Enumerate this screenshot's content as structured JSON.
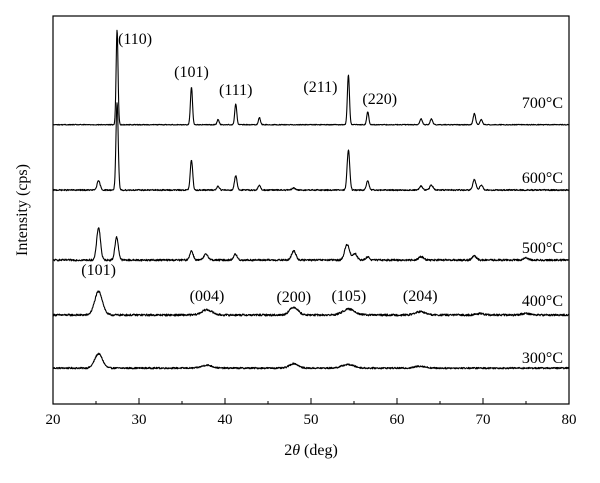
{
  "chart_data": {
    "type": "line",
    "title": "",
    "xlabel_prefix": "2",
    "xlabel_symbol": "θ",
    "xlabel_suffix": " (deg)",
    "ylabel": "Intensity (cps)",
    "xlim": [
      20,
      80
    ],
    "xticks": [
      20,
      30,
      40,
      50,
      60,
      70,
      80
    ],
    "y_ticks_shown": false,
    "grid": false,
    "legend": "none",
    "line_color": "#000000",
    "series": [
      {
        "name": "300°C",
        "baseline": 0.6,
        "noise": 0.12,
        "peaks": [
          {
            "x": 25.3,
            "h": 2.2,
            "w": 0.45
          },
          {
            "x": 37.9,
            "h": 0.45,
            "w": 0.6
          },
          {
            "x": 48.0,
            "h": 0.7,
            "w": 0.5
          },
          {
            "x": 54.3,
            "h": 0.55,
            "w": 0.7
          },
          {
            "x": 62.7,
            "h": 0.3,
            "w": 0.6
          }
        ]
      },
      {
        "name": "400°C",
        "baseline": 0.0,
        "noise": 0.15,
        "peaks": [
          {
            "x": 25.3,
            "h": 3.6,
            "w": 0.45
          },
          {
            "x": 37.9,
            "h": 0.8,
            "w": 0.6
          },
          {
            "x": 48.0,
            "h": 1.2,
            "w": 0.5
          },
          {
            "x": 54.4,
            "h": 0.9,
            "w": 0.7
          },
          {
            "x": 62.7,
            "h": 0.5,
            "w": 0.6
          },
          {
            "x": 69.6,
            "h": 0.2,
            "w": 0.5
          },
          {
            "x": 75.0,
            "h": 0.25,
            "w": 0.5
          }
        ]
      },
      {
        "name": "500°C",
        "baseline": 0.3,
        "noise": 0.14,
        "peaks": [
          {
            "x": 25.3,
            "h": 5.0,
            "w": 0.22
          },
          {
            "x": 27.4,
            "h": 3.5,
            "w": 0.2
          },
          {
            "x": 36.1,
            "h": 1.4,
            "w": 0.2
          },
          {
            "x": 37.8,
            "h": 0.9,
            "w": 0.25
          },
          {
            "x": 41.2,
            "h": 0.9,
            "w": 0.2
          },
          {
            "x": 48.0,
            "h": 1.4,
            "w": 0.25
          },
          {
            "x": 54.2,
            "h": 2.4,
            "w": 0.28
          },
          {
            "x": 55.1,
            "h": 1.0,
            "w": 0.25
          },
          {
            "x": 56.6,
            "h": 0.5,
            "w": 0.2
          },
          {
            "x": 62.8,
            "h": 0.5,
            "w": 0.3
          },
          {
            "x": 69.0,
            "h": 0.6,
            "w": 0.25
          },
          {
            "x": 75.0,
            "h": 0.3,
            "w": 0.3
          }
        ]
      },
      {
        "name": "600°C",
        "baseline": 0.3,
        "noise": 0.1,
        "peaks": [
          {
            "x": 25.3,
            "h": 1.4,
            "w": 0.18
          },
          {
            "x": 27.45,
            "h": 13.4,
            "w": 0.13
          },
          {
            "x": 36.1,
            "h": 4.6,
            "w": 0.14
          },
          {
            "x": 39.2,
            "h": 0.6,
            "w": 0.15
          },
          {
            "x": 41.25,
            "h": 2.2,
            "w": 0.15
          },
          {
            "x": 44.0,
            "h": 0.7,
            "w": 0.15
          },
          {
            "x": 48.0,
            "h": 0.3,
            "w": 0.2
          },
          {
            "x": 54.35,
            "h": 6.2,
            "w": 0.15
          },
          {
            "x": 56.6,
            "h": 1.4,
            "w": 0.15
          },
          {
            "x": 62.8,
            "h": 0.6,
            "w": 0.18
          },
          {
            "x": 64.0,
            "h": 0.8,
            "w": 0.18
          },
          {
            "x": 69.0,
            "h": 1.6,
            "w": 0.18
          },
          {
            "x": 69.8,
            "h": 0.8,
            "w": 0.18
          }
        ]
      },
      {
        "name": "700°C",
        "baseline": 0.2,
        "noise": 0.06,
        "peaks": [
          {
            "x": 27.45,
            "h": 14.6,
            "w": 0.11
          },
          {
            "x": 36.1,
            "h": 5.8,
            "w": 0.12
          },
          {
            "x": 39.2,
            "h": 0.8,
            "w": 0.12
          },
          {
            "x": 41.25,
            "h": 3.2,
            "w": 0.12
          },
          {
            "x": 44.0,
            "h": 1.1,
            "w": 0.12
          },
          {
            "x": 54.35,
            "h": 7.7,
            "w": 0.12
          },
          {
            "x": 56.6,
            "h": 2.0,
            "w": 0.12
          },
          {
            "x": 62.8,
            "h": 0.9,
            "w": 0.14
          },
          {
            "x": 64.0,
            "h": 0.9,
            "w": 0.14
          },
          {
            "x": 69.0,
            "h": 1.7,
            "w": 0.14
          },
          {
            "x": 69.8,
            "h": 0.8,
            "w": 0.14
          }
        ]
      }
    ],
    "annotations": [
      {
        "text": "(110)",
        "x": 27.45,
        "series": "700°C"
      },
      {
        "text": "(101)",
        "x": 36.1,
        "series": "700°C"
      },
      {
        "text": "(111)",
        "x": 41.25,
        "series": "700°C"
      },
      {
        "text": "(211)",
        "x": 54.35,
        "series": "700°C"
      },
      {
        "text": "(220)",
        "x": 56.6,
        "series": "700°C"
      },
      {
        "text": "(101)",
        "x": 25.3,
        "series": "400°C"
      },
      {
        "text": "(004)",
        "x": 37.9,
        "series": "400°C"
      },
      {
        "text": "(200)",
        "x": 48.0,
        "series": "400°C"
      },
      {
        "text": "(105)",
        "x": 54.4,
        "series": "400°C"
      },
      {
        "text": "(204)",
        "x": 62.7,
        "series": "400°C"
      }
    ]
  }
}
